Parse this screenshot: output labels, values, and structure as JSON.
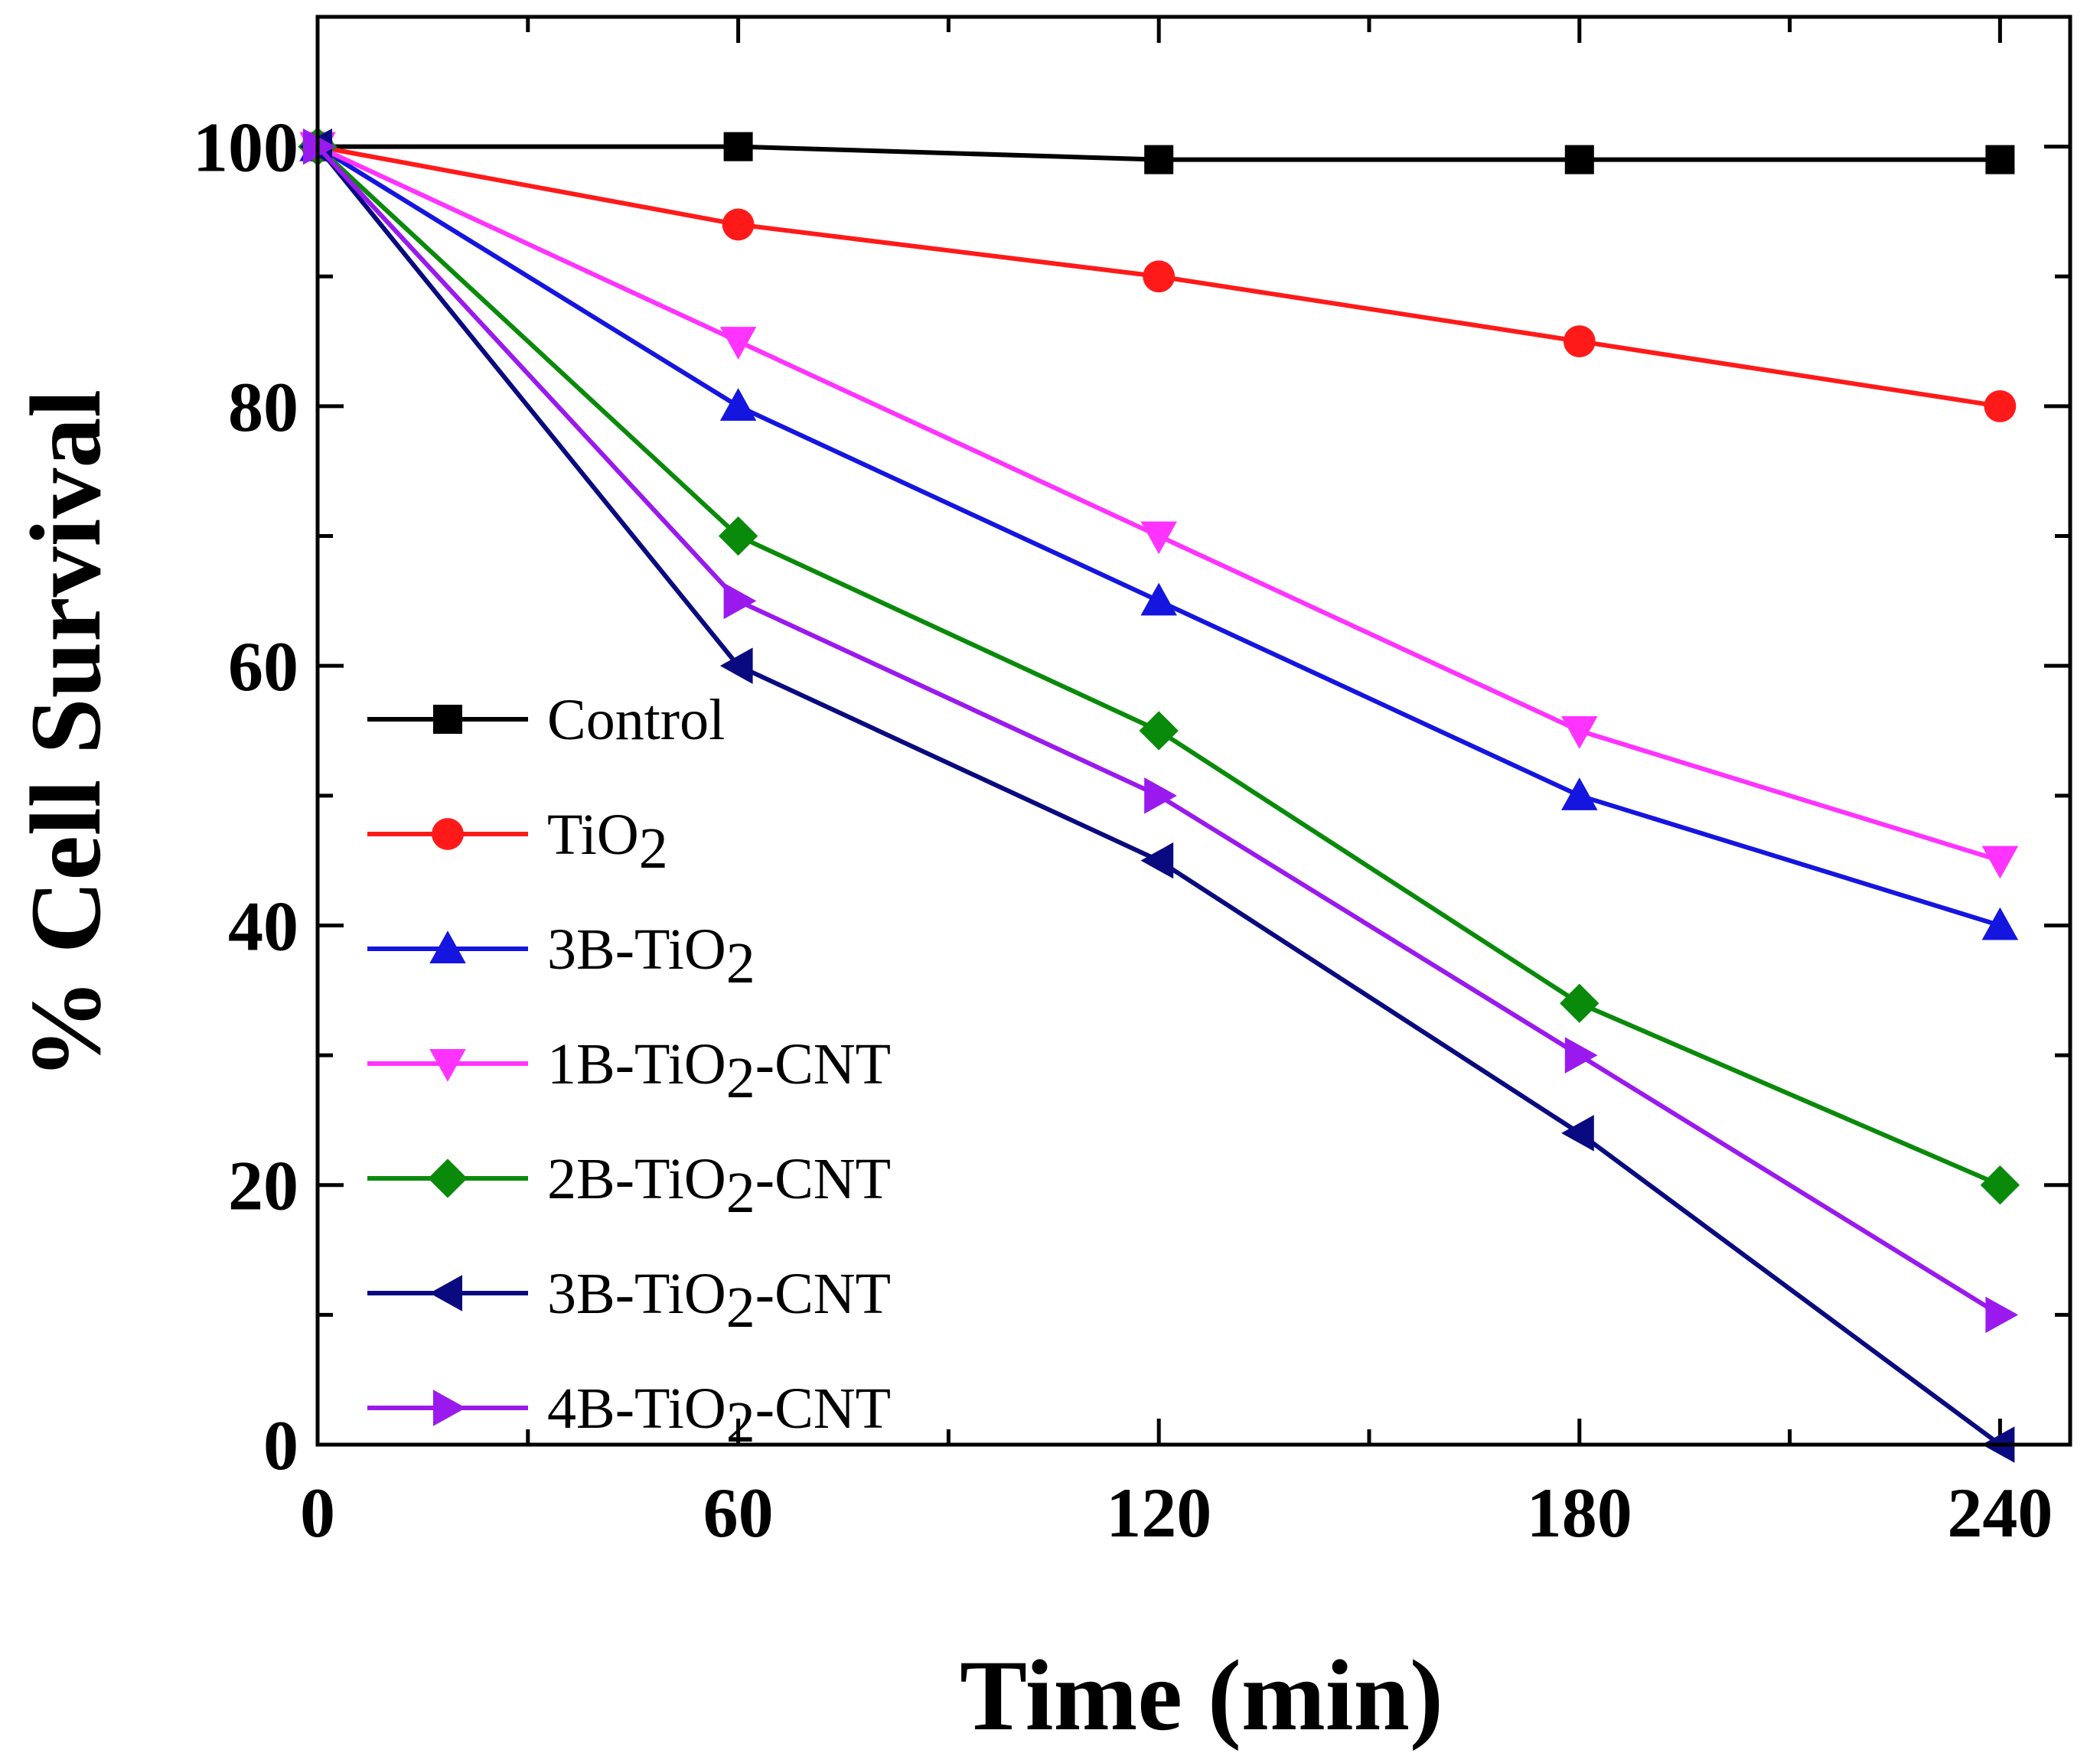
{
  "chart_data": {
    "type": "line",
    "title": "",
    "xlabel": "Time (min)",
    "ylabel": "% Cell Survival",
    "xlim": [
      0,
      250
    ],
    "ylim": [
      0,
      110
    ],
    "xticks": [
      0,
      60,
      120,
      180,
      240
    ],
    "yticks": [
      0,
      20,
      40,
      60,
      80,
      100
    ],
    "xtick_labels": [
      "0",
      "60",
      "120",
      "180",
      "240"
    ],
    "ytick_labels": [
      "0",
      "20",
      "40",
      "60",
      "80",
      "100"
    ],
    "x": [
      0,
      60,
      120,
      180,
      240
    ],
    "legend_position": "left-middle",
    "series": [
      {
        "name": "Control",
        "label_main": "Control",
        "label_sub": "",
        "label_tail": "",
        "color": "#000000",
        "marker": "square",
        "values": [
          100,
          100,
          99,
          99,
          99
        ]
      },
      {
        "name": "TiO2",
        "label_main": "TiO",
        "label_sub": "2",
        "label_tail": "",
        "color": "#ff1a1a",
        "marker": "circle",
        "values": [
          100,
          94,
          90,
          85,
          80
        ]
      },
      {
        "name": "3B-TiO2",
        "label_main": "3B-TiO",
        "label_sub": "2",
        "label_tail": "",
        "color": "#1515e0",
        "marker": "triangle-up",
        "values": [
          100,
          80,
          65,
          50,
          40
        ]
      },
      {
        "name": "1B-TiO2-CNT",
        "label_main": "1B-TiO",
        "label_sub": "2",
        "label_tail": "-CNT",
        "color": "#ff33ff",
        "marker": "triangle-down",
        "values": [
          100,
          85,
          70,
          55,
          45
        ]
      },
      {
        "name": "2B-TiO2-CNT",
        "label_main": "2B-TiO",
        "label_sub": "2",
        "label_tail": "-CNT",
        "color": "#0a8a0a",
        "marker": "diamond",
        "values": [
          100,
          70,
          55,
          34,
          20
        ]
      },
      {
        "name": "3B-TiO2-CNT",
        "label_main": "3B-TiO",
        "label_sub": "2",
        "label_tail": "-CNT",
        "color": "#0a0a80",
        "marker": "triangle-left",
        "values": [
          100,
          60,
          45,
          24,
          0
        ]
      },
      {
        "name": "4B-TiO2-CNT",
        "label_main": "4B-TiO",
        "label_sub": "2",
        "label_tail": "-CNT",
        "color": "#9a1aee",
        "marker": "triangle-right",
        "values": [
          100,
          65,
          50,
          30,
          10
        ]
      }
    ]
  }
}
